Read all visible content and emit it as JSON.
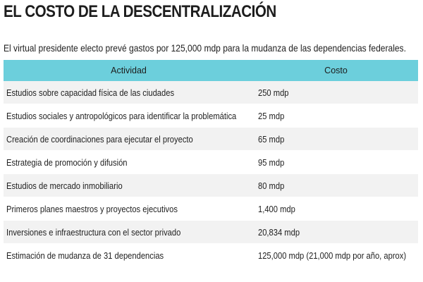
{
  "article": {
    "title": "EL COSTO DE LA DESCENTRALIZACIÓN",
    "subtitle": "El virtual presidente electo prevé gastos por 125,000 mdp para la mudanza de las dependencias federales."
  },
  "table": {
    "headers": {
      "activity": "Actividad",
      "cost": "Costo"
    },
    "rows": [
      {
        "activity": "Estudios sobre capacidad física de las ciudades",
        "cost": "250 mdp"
      },
      {
        "activity": "Estudios sociales y antropológicos para identificar la problemática",
        "cost": "25 mdp"
      },
      {
        "activity": "Creación de coordinaciones para ejecutar el proyecto",
        "cost": "65 mdp"
      },
      {
        "activity": "Estrategia de promoción y difusión",
        "cost": "95 mdp"
      },
      {
        "activity": "Estudios de mercado inmobiliario",
        "cost": "80 mdp"
      },
      {
        "activity": "Primeros planes maestros y proyectos ejecutivos",
        "cost": "1,400 mdp"
      },
      {
        "activity": "Inversiones e infraestructura con el sector privado",
        "cost": "20,834 mdp"
      },
      {
        "activity": "Estimación de mudanza de 31 dependencias",
        "cost": "125,000 mdp (21,000 mdp por año, aprox)"
      }
    ]
  },
  "colors": {
    "header_bg": "#6ccfdc",
    "row_alt_bg": "#f2f2f2"
  }
}
